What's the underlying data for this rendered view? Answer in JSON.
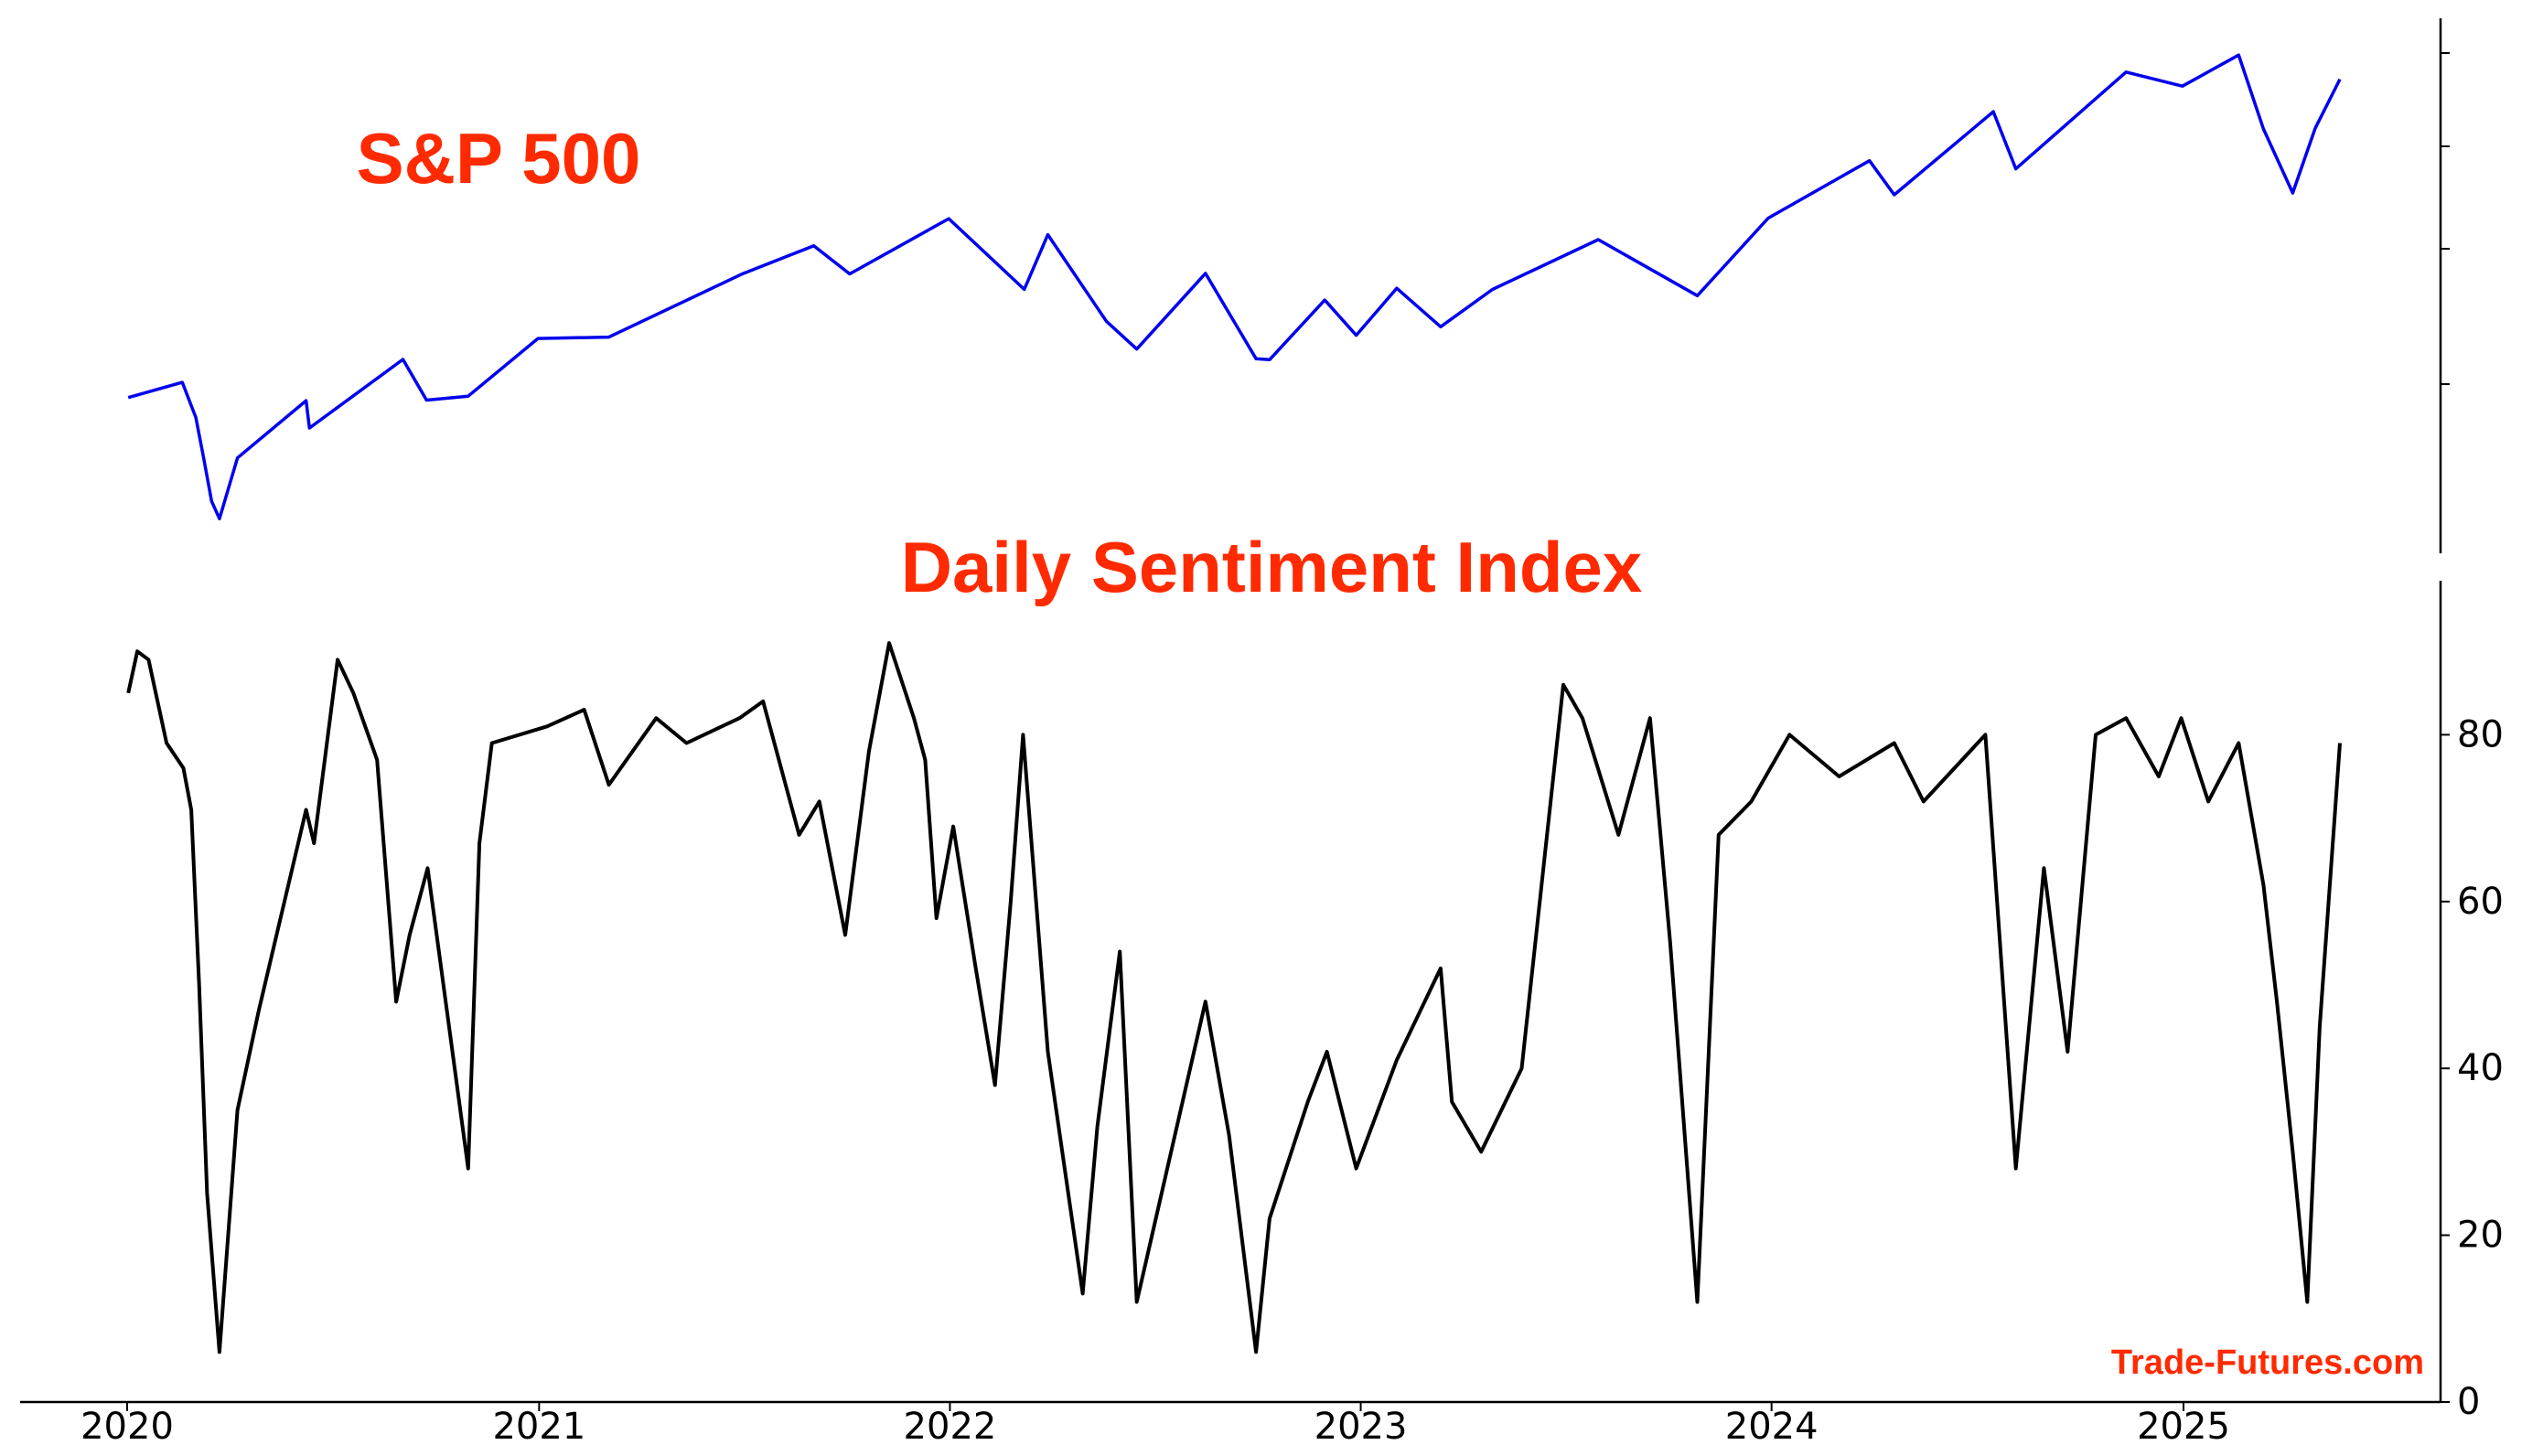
{
  "watermark": "Trade-Futures.com",
  "colors": {
    "title": "#ff2a00",
    "sp500_line": "#0000ee",
    "dsi_line": "#000000",
    "axis": "#000000"
  },
  "chart_data": [
    {
      "type": "line",
      "title": "S&P 500",
      "x_kind": "date",
      "x": [
        "2020-01-02",
        "2020-02-19",
        "2020-03-02",
        "2020-03-09",
        "2020-03-16",
        "2020-03-23",
        "2020-04-08",
        "2020-06-08",
        "2020-06-11",
        "2020-09-02",
        "2020-09-23",
        "2020-10-30",
        "2020-12-31",
        "2021-03-04",
        "2021-06-30",
        "2021-09-02",
        "2021-10-04",
        "2021-12-31",
        "2022-03-08",
        "2022-03-29",
        "2022-05-20",
        "2022-06-16",
        "2022-08-16",
        "2022-09-30",
        "2022-10-12",
        "2022-11-30",
        "2022-12-28",
        "2023-02-02",
        "2023-03-13",
        "2023-04-28",
        "2023-07-31",
        "2023-10-27",
        "2023-12-29",
        "2024-03-28",
        "2024-04-19",
        "2024-07-16",
        "2024-08-05",
        "2024-11-11",
        "2024-12-31",
        "2025-02-19",
        "2025-03-13",
        "2025-04-08",
        "2025-04-28",
        "2025-05-20"
      ],
      "values": [
        3258,
        3386,
        3090,
        2746,
        2386,
        2237,
        2750,
        3232,
        3002,
        3580,
        3237,
        3270,
        3756,
        3768,
        4298,
        4537,
        4300,
        4766,
        4170,
        4631,
        3901,
        3667,
        4305,
        3586,
        3577,
        4080,
        3783,
        4179,
        3855,
        4169,
        4589,
        4117,
        4770,
        5254,
        4967,
        5667,
        5186,
        6001,
        5882,
        6144,
        5522,
        4982,
        5528,
        5941
      ],
      "ylim": [
        2100,
        6300
      ],
      "series": [
        {
          "name": "",
          "color": "#0000ee"
        }
      ]
    },
    {
      "type": "line",
      "title": "Daily Sentiment Index",
      "x_kind": "date",
      "x": [
        "2020-01-02",
        "2020-01-10",
        "2020-01-20",
        "2020-02-05",
        "2020-02-20",
        "2020-02-27",
        "2020-03-05",
        "2020-03-12",
        "2020-03-23",
        "2020-04-08",
        "2020-04-27",
        "2020-05-18",
        "2020-06-08",
        "2020-06-15",
        "2020-07-06",
        "2020-07-20",
        "2020-08-10",
        "2020-08-27",
        "2020-09-08",
        "2020-09-24",
        "2020-10-12",
        "2020-10-30",
        "2020-11-09",
        "2020-11-20",
        "2021-01-08",
        "2021-02-10",
        "2021-03-04",
        "2021-04-15",
        "2021-05-12",
        "2021-06-28",
        "2021-07-19",
        "2021-08-20",
        "2021-09-07",
        "2021-09-30",
        "2021-10-21",
        "2021-11-08",
        "2021-11-30",
        "2021-12-10",
        "2021-12-20",
        "2022-01-04",
        "2022-01-24",
        "2022-02-10",
        "2022-02-24",
        "2022-03-07",
        "2022-03-29",
        "2022-04-29",
        "2022-05-12",
        "2022-06-01",
        "2022-06-16",
        "2022-08-16",
        "2022-09-06",
        "2022-09-30",
        "2022-10-12",
        "2022-11-15",
        "2022-12-02",
        "2022-12-28",
        "2023-02-02",
        "2023-03-13",
        "2023-03-23",
        "2023-04-18",
        "2023-05-24",
        "2023-06-30",
        "2023-07-17",
        "2023-08-18",
        "2023-09-15",
        "2023-10-03",
        "2023-10-27",
        "2023-11-15",
        "2023-12-14",
        "2024-01-17",
        "2024-03-01",
        "2024-04-19",
        "2024-05-15",
        "2024-07-09",
        "2024-08-05",
        "2024-08-30",
        "2024-09-20",
        "2024-10-15",
        "2024-11-11",
        "2024-12-10",
        "2024-12-30",
        "2025-01-23",
        "2025-02-19",
        "2025-03-13",
        "2025-03-25",
        "2025-04-08",
        "2025-04-21",
        "2025-05-02",
        "2025-05-20"
      ],
      "values": [
        85,
        90,
        89,
        79,
        76,
        71,
        50,
        25,
        6,
        35,
        47,
        59,
        71,
        67,
        89,
        85,
        77,
        48,
        56,
        64,
        46,
        28,
        67,
        79,
        81,
        83,
        74,
        82,
        79,
        82,
        84,
        68,
        72,
        56,
        78,
        91,
        82,
        77,
        58,
        69,
        52,
        38,
        60,
        80,
        42,
        13,
        33,
        54,
        12,
        48,
        32,
        6,
        22,
        36,
        42,
        28,
        41,
        52,
        36,
        30,
        40,
        86,
        82,
        68,
        82,
        55,
        12,
        68,
        72,
        80,
        75,
        79,
        72,
        80,
        28,
        64,
        42,
        80,
        82,
        75,
        82,
        72,
        79,
        62,
        48,
        30,
        12,
        45,
        79
      ],
      "ylim": [
        0,
        97
      ],
      "yticks": [
        0,
        20,
        40,
        60,
        80
      ],
      "xticks": [
        "2020",
        "2021",
        "2022",
        "2023",
        "2024",
        "2025"
      ],
      "series": [
        {
          "name": "",
          "color": "#000000"
        }
      ]
    }
  ]
}
